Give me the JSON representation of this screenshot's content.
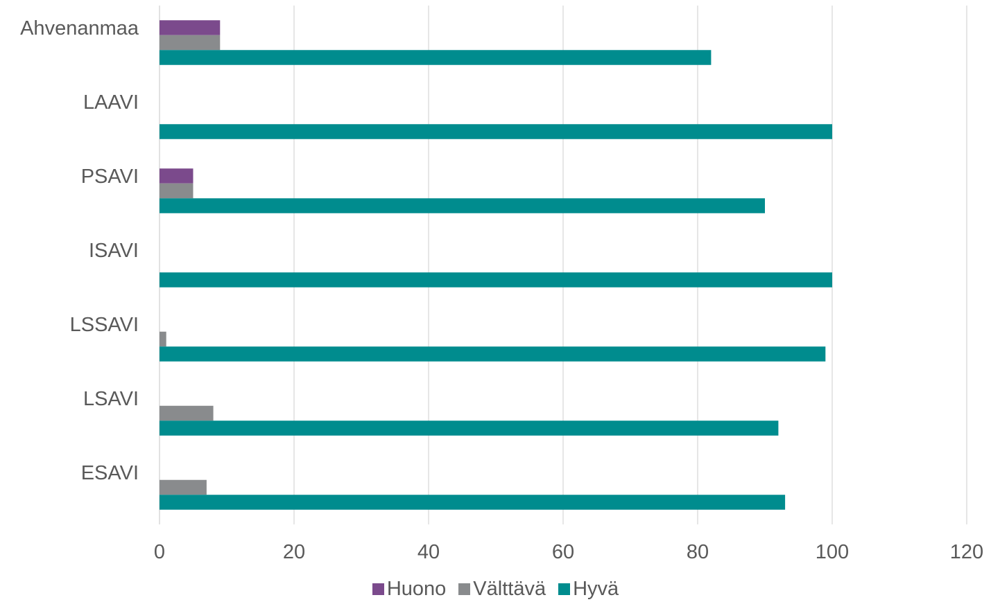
{
  "chart_data": {
    "type": "bar",
    "orientation": "horizontal",
    "categories": [
      "ESAVI",
      "LSAVI",
      "LSSAVI",
      "ISAVI",
      "PSAVI",
      "LAAVI",
      "Ahvenanmaa"
    ],
    "series": [
      {
        "name": "Huono",
        "color": "#7B4A8C",
        "values": [
          0,
          0,
          0,
          0,
          5,
          0,
          9
        ]
      },
      {
        "name": "Välttävä",
        "color": "#898B8D",
        "values": [
          7,
          8,
          1,
          0,
          5,
          0,
          9
        ]
      },
      {
        "name": "Hyvä",
        "color": "#008C8E",
        "values": [
          93,
          92,
          99,
          100,
          90,
          100,
          82
        ]
      }
    ],
    "xlim": [
      0,
      120
    ],
    "xticks": [
      "0",
      "20",
      "40",
      "60",
      "80",
      "100",
      "120"
    ],
    "grid": "vertical",
    "legend_position": "bottom"
  }
}
